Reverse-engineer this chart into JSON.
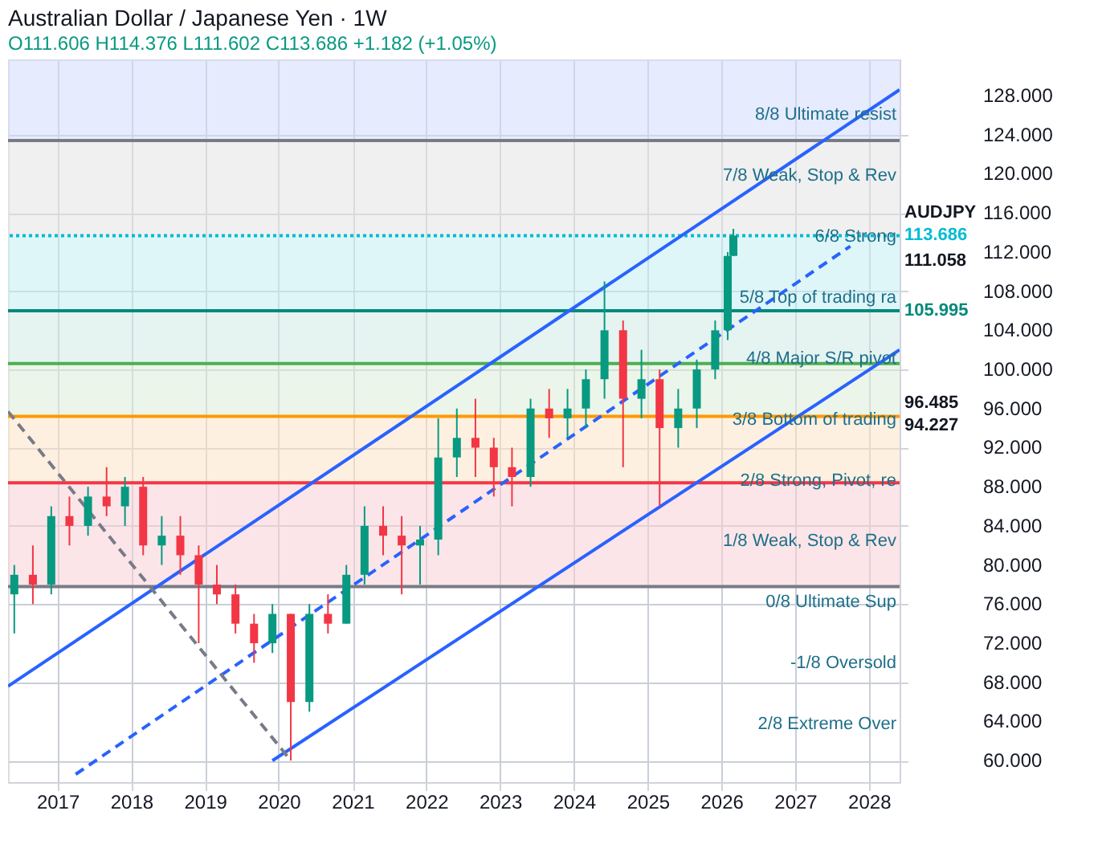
{
  "chart_data": {
    "type": "candlestick",
    "title": "Australian Dollar / Japanese Yen · 1W",
    "subtitle": "O111.606 H114.376 L111.602 C113.686 +1.182 (+1.05%)",
    "x": [
      "2016-06",
      "2016-09",
      "2016-12",
      "2017-03",
      "2017-06",
      "2017-09",
      "2017-12",
      "2018-03",
      "2018-06",
      "2018-09",
      "2018-12",
      "2019-03",
      "2019-06",
      "2019-09",
      "2019-12",
      "2020-03",
      "2020-06",
      "2020-09",
      "2020-12",
      "2021-03",
      "2021-06",
      "2021-09",
      "2021-12",
      "2022-03",
      "2022-06",
      "2022-09",
      "2022-12",
      "2023-03",
      "2023-06",
      "2023-09",
      "2023-12",
      "2024-03",
      "2024-06",
      "2024-09",
      "2024-12",
      "2025-03",
      "2025-06",
      "2025-09",
      "2025-12",
      "2026-02",
      "2026-03"
    ],
    "ohlc": [
      [
        77,
        80,
        73,
        79
      ],
      [
        79,
        82,
        76,
        78
      ],
      [
        78,
        86,
        77,
        85
      ],
      [
        85,
        87,
        82,
        84
      ],
      [
        84,
        88,
        83,
        87
      ],
      [
        87,
        90,
        85,
        86
      ],
      [
        86,
        89,
        84,
        88
      ],
      [
        88,
        89,
        81,
        82
      ],
      [
        82,
        85,
        80,
        83
      ],
      [
        83,
        85,
        79,
        81
      ],
      [
        81,
        82,
        72,
        78
      ],
      [
        78,
        80,
        76,
        77
      ],
      [
        77,
        78,
        73,
        74
      ],
      [
        74,
        75,
        70,
        72
      ],
      [
        72,
        76,
        71,
        75
      ],
      [
        75,
        75,
        60,
        66
      ],
      [
        66,
        76,
        65,
        75
      ],
      [
        75,
        77,
        73,
        74
      ],
      [
        74,
        80,
        74,
        79
      ],
      [
        79,
        86,
        78,
        84
      ],
      [
        84,
        86,
        81,
        83
      ],
      [
        83,
        85,
        77,
        82
      ],
      [
        82,
        84,
        78,
        82.6
      ],
      [
        82.6,
        95,
        81,
        91
      ],
      [
        91,
        96,
        89,
        93
      ],
      [
        93,
        97,
        89,
        92
      ],
      [
        92,
        93,
        87,
        90
      ],
      [
        90,
        92,
        86,
        89
      ],
      [
        89,
        97,
        88,
        96
      ],
      [
        96,
        98,
        93,
        95
      ],
      [
        95,
        98,
        93,
        96
      ],
      [
        96,
        100,
        94,
        99
      ],
      [
        99,
        109,
        97,
        104
      ],
      [
        104,
        105,
        90,
        97
      ],
      [
        97,
        102,
        95,
        99
      ],
      [
        99,
        100,
        86,
        94
      ],
      [
        94,
        98,
        92,
        96
      ],
      [
        96,
        101,
        94,
        100
      ],
      [
        100,
        105,
        99,
        104
      ],
      [
        104,
        112,
        103,
        111.606
      ],
      [
        111.606,
        114.376,
        111.602,
        113.686
      ]
    ],
    "series": [
      {
        "type": "line",
        "color": "#2962ff",
        "line_style": "solid",
        "x": [
          "2016-05",
          "2028-06"
        ],
        "values": [
          67.6,
          128.6
        ]
      },
      {
        "type": "line",
        "color": "#2962ff",
        "line_style": "solid",
        "x": [
          "2019-12",
          "2028-06"
        ],
        "values": [
          60,
          102
        ]
      },
      {
        "type": "line",
        "color": "#2962ff",
        "line_style": "dashed",
        "x": [
          "2017-04",
          "2027-10"
        ],
        "values": [
          58.6,
          112.6
        ]
      },
      {
        "type": "line",
        "color": "#787b86",
        "line_style": "dashed",
        "x": [
          "2016-05",
          "2020-03"
        ],
        "values": [
          95.7,
          60
        ]
      }
    ],
    "colors": [
      "#089981",
      "#f23645",
      "#089981",
      "#f23645",
      "#089981",
      "#f23645",
      "#089981",
      "#f23645",
      "#089981",
      "#f23645",
      "#f23645",
      "#f23645",
      "#f23645",
      "#f23645",
      "#089981",
      "#f23645",
      "#089981",
      "#f23645",
      "#089981",
      "#089981",
      "#f23645",
      "#f23645",
      "#089981",
      "#089981",
      "#089981",
      "#f23645",
      "#f23645",
      "#f23645",
      "#089981",
      "#f23645",
      "#089981",
      "#089981",
      "#089981",
      "#f23645",
      "#089981",
      "#f23645",
      "#089981",
      "#089981",
      "#089981",
      "#089981",
      "#089981"
    ],
    "bands": [
      {
        "axis": "y",
        "from": 77.8,
        "to": 88.4,
        "color": "#f8d0d6"
      },
      {
        "axis": "y",
        "from": 88.4,
        "to": 95.2,
        "color": "#fde3c8"
      },
      {
        "axis": "y",
        "from": 95.2,
        "to": 100.6,
        "color": "#dcedd8"
      },
      {
        "axis": "y",
        "from": 100.6,
        "to": 105.995,
        "color": "#cfe9e6"
      },
      {
        "axis": "y",
        "from": 105.995,
        "to": 113.686,
        "color": "#c5eef3"
      },
      {
        "axis": "y",
        "from": 113.686,
        "to": 123.4,
        "color": "#e3e3e3"
      },
      {
        "axis": "y",
        "from": 123.4,
        "to": 131.7,
        "color": "#d2dcfb"
      }
    ],
    "ref_lines": [
      {
        "axis": "y",
        "value": 77.8,
        "color": "#787b86",
        "line_style": "solid"
      },
      {
        "axis": "y",
        "value": 88.4,
        "color": "#f23645",
        "line_style": "solid"
      },
      {
        "axis": "y",
        "value": 95.2,
        "color": "#ff9800",
        "line_style": "solid"
      },
      {
        "axis": "y",
        "value": 100.6,
        "color": "#4caf50",
        "line_style": "solid"
      },
      {
        "axis": "y",
        "value": 105.995,
        "color": "#00897b",
        "line_style": "solid",
        "label": "105.995"
      },
      {
        "axis": "y",
        "value": 113.686,
        "color": "#00bcd4",
        "line_style": "dotted",
        "label": "113.686"
      },
      {
        "axis": "y",
        "value": 123.4,
        "color": "#787b86",
        "line_style": "solid"
      }
    ],
    "annotations": [
      "8/8 Ultimate resist",
      "7/8 Weak, Stop & Rev",
      "6/8 Strong",
      "5/8 Top of trading ra",
      "4/8 Major S/R pivot",
      "3/8 Bottom of trading",
      "2/8 Strong, Pivot, re",
      "1/8 Weak, Stop & Rev",
      "0/8 Ultimate Sup",
      "-1/8 Oversold",
      "2/8 Extreme Over",
      {
        "text": "AUDJPY",
        "x": "2028-06",
        "y": 113.686
      },
      {
        "text": "111.058",
        "x": "2028-06",
        "y": 111.058
      },
      {
        "text": "96.485",
        "x": "2028-06",
        "y": 96.485
      },
      {
        "text": "94.227",
        "x": "2028-06",
        "y": 94.227
      }
    ],
    "xlim": [
      "2016-05",
      "2028-06"
    ],
    "xticks": [
      "2017",
      "2018",
      "2019",
      "2020",
      "2021",
      "2022",
      "2023",
      "2024",
      "2025",
      "2026",
      "2027",
      "2028"
    ],
    "ylim": [
      57.8,
      131.7
    ],
    "yticks": [
      {
        "value": 60,
        "label": "60.000"
      },
      {
        "value": 64,
        "label": "64.000"
      },
      {
        "value": 68,
        "label": "68.000"
      },
      {
        "value": 72,
        "label": "72.000"
      },
      {
        "value": 76,
        "label": "76.000"
      },
      {
        "value": 80,
        "label": "80.000"
      },
      {
        "value": 84,
        "label": "84.000"
      },
      {
        "value": 88,
        "label": "88.000"
      },
      {
        "value": 92,
        "label": "92.000"
      },
      {
        "value": 96,
        "label": "96.000"
      },
      {
        "value": 100,
        "label": "100.000"
      },
      {
        "value": 104,
        "label": "104.000"
      },
      {
        "value": 108,
        "label": "108.000"
      },
      {
        "value": 112,
        "label": "112.000"
      },
      {
        "value": 116,
        "label": "116.000"
      },
      {
        "value": 120,
        "label": "120.000"
      },
      {
        "value": 124,
        "label": "124.000"
      },
      {
        "value": 128,
        "label": "128.000"
      }
    ],
    "grid": true
  }
}
